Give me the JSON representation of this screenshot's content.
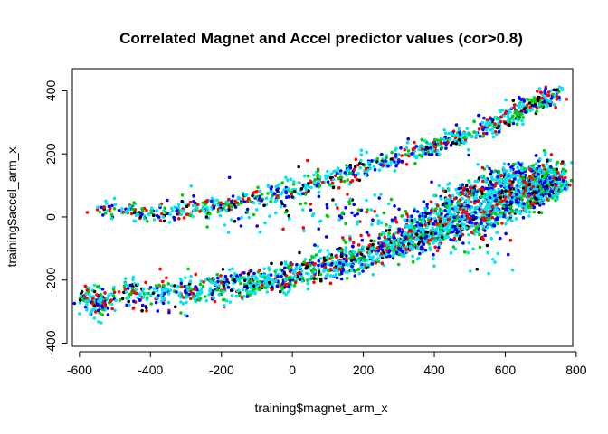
{
  "chart_data": {
    "type": "scatter",
    "title": "Correlated Magnet and Accel predictor values (cor>0.8)",
    "xlabel": "training$magnet_arm_x",
    "ylabel": "training$accel_arm_x",
    "xlim": [
      -620,
      790
    ],
    "ylim": [
      -410,
      470
    ],
    "x_ticks": [
      -600,
      -400,
      -200,
      0,
      200,
      400,
      600,
      800
    ],
    "y_ticks": [
      -400,
      -200,
      0,
      200,
      400
    ],
    "x_tick_labels": [
      "-600",
      "-400",
      "-200",
      "0",
      "200",
      "400",
      "600",
      "800"
    ],
    "y_tick_labels": [
      "-400",
      "-200",
      "0",
      "200",
      "400"
    ],
    "grid": false,
    "legend": "none",
    "series_colors": [
      "#000000",
      "#ff0000",
      "#00cd00",
      "#0000ff",
      "#00e5ee"
    ],
    "clusters": [
      {
        "path": [
          [
            -555,
            25
          ],
          [
            -400,
            10
          ],
          [
            -200,
            35
          ],
          [
            0,
            90
          ],
          [
            200,
            155
          ],
          [
            400,
            225
          ],
          [
            600,
            310
          ],
          [
            750,
            400
          ]
        ],
        "spread": 25,
        "count": 900
      },
      {
        "path": [
          [
            -520,
            -250
          ],
          [
            -300,
            -240
          ],
          [
            -100,
            -210
          ],
          [
            100,
            -160
          ],
          [
            300,
            -90
          ],
          [
            500,
            -10
          ],
          [
            650,
            60
          ],
          [
            760,
            120
          ]
        ],
        "spread": 40,
        "count": 1900
      },
      {
        "path": [
          [
            300,
            -60
          ],
          [
            450,
            40
          ],
          [
            600,
            110
          ],
          [
            760,
            130
          ]
        ],
        "spread": 55,
        "count": 700
      },
      {
        "path": [
          [
            -590,
            -250
          ],
          [
            -530,
            -280
          ]
        ],
        "spread": 35,
        "count": 120
      },
      {
        "path": [
          [
            -300,
            0
          ],
          [
            0,
            30
          ],
          [
            300,
            -20
          ],
          [
            600,
            -60
          ]
        ],
        "spread": 90,
        "count": 260
      }
    ]
  }
}
